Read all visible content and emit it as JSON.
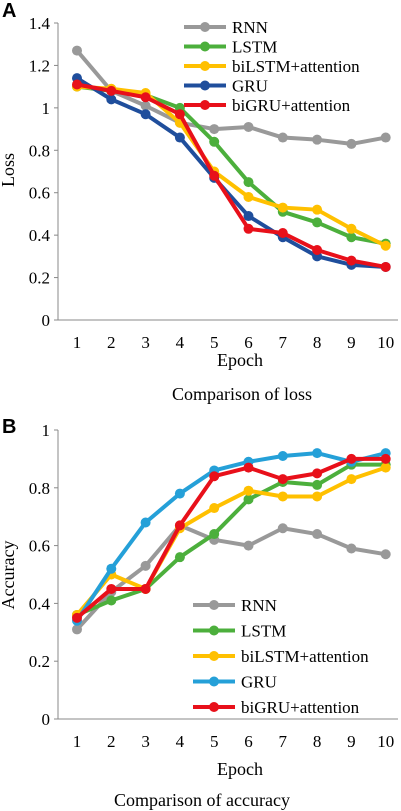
{
  "figure": {
    "panel_a_letter": "A",
    "panel_b_letter": "B"
  },
  "chart_data": [
    {
      "type": "line",
      "caption": "Comparison of loss",
      "xlabel": "Epoch",
      "ylabel": "Loss",
      "x": [
        1,
        2,
        3,
        4,
        5,
        6,
        7,
        8,
        9,
        10
      ],
      "xticks": [
        "1",
        "2",
        "3",
        "4",
        "5",
        "6",
        "7",
        "8",
        "9",
        "10"
      ],
      "yticks": [
        "0",
        "0.2",
        "0.4",
        "0.6",
        "0.8",
        "1",
        "1.2",
        "1.4"
      ],
      "ylim": [
        0,
        1.4
      ],
      "grid": false,
      "legend_position": "top-right",
      "series": [
        {
          "name": "RNN",
          "color": "#999999",
          "values": [
            1.27,
            1.08,
            1.01,
            0.93,
            0.9,
            0.91,
            0.86,
            0.85,
            0.83,
            0.86
          ]
        },
        {
          "name": "LSTM",
          "color": "#4caf3c",
          "values": [
            1.1,
            1.08,
            1.06,
            1.0,
            0.84,
            0.65,
            0.51,
            0.46,
            0.39,
            0.36
          ]
        },
        {
          "name": "biLSTM+attention",
          "color": "#ffc000",
          "values": [
            1.1,
            1.09,
            1.07,
            0.93,
            0.7,
            0.58,
            0.53,
            0.52,
            0.43,
            0.35
          ]
        },
        {
          "name": "GRU",
          "color": "#1f4e9c",
          "values": [
            1.14,
            1.04,
            0.97,
            0.86,
            0.67,
            0.49,
            0.39,
            0.3,
            0.26,
            0.25
          ]
        },
        {
          "name": "biGRU+attention",
          "color": "#e8101a",
          "values": [
            1.11,
            1.08,
            1.05,
            0.97,
            0.68,
            0.43,
            0.41,
            0.33,
            0.28,
            0.25
          ]
        }
      ]
    },
    {
      "type": "line",
      "caption": "Comparison of accuracy",
      "xlabel": "Epoch",
      "ylabel": "Accuracy",
      "x": [
        1,
        2,
        3,
        4,
        5,
        6,
        7,
        8,
        9,
        10
      ],
      "xticks": [
        "1",
        "2",
        "3",
        "4",
        "5",
        "6",
        "7",
        "8",
        "9",
        "10"
      ],
      "yticks": [
        "0",
        "0.2",
        "0.4",
        "0.6",
        "0.8",
        "1"
      ],
      "ylim": [
        0,
        1
      ],
      "grid": false,
      "legend_position": "bottom-right",
      "series": [
        {
          "name": "RNN",
          "color": "#999999",
          "values": [
            0.31,
            0.44,
            0.53,
            0.67,
            0.62,
            0.6,
            0.66,
            0.64,
            0.59,
            0.57
          ]
        },
        {
          "name": "LSTM",
          "color": "#4caf3c",
          "values": [
            0.36,
            0.41,
            0.45,
            0.56,
            0.64,
            0.76,
            0.82,
            0.81,
            0.88,
            0.88
          ]
        },
        {
          "name": "biLSTM+attention",
          "color": "#ffc000",
          "values": [
            0.36,
            0.5,
            0.45,
            0.66,
            0.73,
            0.79,
            0.77,
            0.77,
            0.83,
            0.87
          ]
        },
        {
          "name": "GRU",
          "color": "#25a0d8",
          "values": [
            0.34,
            0.52,
            0.68,
            0.78,
            0.86,
            0.89,
            0.91,
            0.92,
            0.89,
            0.92
          ]
        },
        {
          "name": "biGRU+attention",
          "color": "#e8101a",
          "values": [
            0.35,
            0.45,
            0.45,
            0.67,
            0.84,
            0.87,
            0.83,
            0.85,
            0.9,
            0.9
          ]
        }
      ]
    }
  ]
}
